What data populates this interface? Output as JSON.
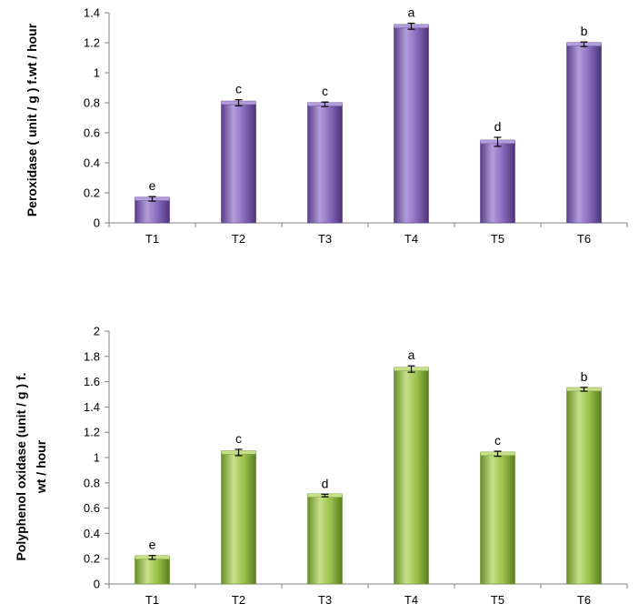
{
  "chart_data": [
    {
      "type": "bar",
      "title": "",
      "ylabel": "Peroxidase ( unit / g ) f.wt / hour",
      "xlabel": "",
      "categories": [
        "T1",
        "T2",
        "T3",
        "T4",
        "T5",
        "T6"
      ],
      "values": [
        0.16,
        0.8,
        0.79,
        1.31,
        0.54,
        1.19
      ],
      "errors": [
        0.015,
        0.02,
        0.015,
        0.02,
        0.03,
        0.015
      ],
      "significance": [
        "e",
        "c",
        "c",
        "a",
        "d",
        "b"
      ],
      "ylim": [
        0,
        1.4
      ],
      "yticks": [
        0,
        0.2,
        0.4,
        0.6,
        0.8,
        1,
        1.2,
        1.4
      ],
      "ytick_labels": [
        "0",
        "0.2",
        "0.4",
        "0.6",
        "0.8",
        "1",
        "1.2",
        "1.4"
      ],
      "bar_color": "#8a6bbf",
      "bar_color_dark": "#5a3f8a",
      "bar_color_light": "#b49ddb"
    },
    {
      "type": "bar",
      "title": "",
      "ylabel_lines": [
        "Polyphenol oxidase (unit / g ) f.",
        "wt / hour"
      ],
      "xlabel": "",
      "categories": [
        "T1",
        "T2",
        "T3",
        "T4",
        "T5",
        "T6"
      ],
      "values": [
        0.21,
        1.04,
        0.7,
        1.7,
        1.03,
        1.54
      ],
      "errors": [
        0.015,
        0.025,
        0.01,
        0.025,
        0.02,
        0.015
      ],
      "significance": [
        "e",
        "c",
        "d",
        "a",
        "c",
        "b"
      ],
      "ylim": [
        0,
        2
      ],
      "yticks": [
        0,
        0.2,
        0.4,
        0.6,
        0.8,
        1,
        1.2,
        1.4,
        1.6,
        1.8,
        2
      ],
      "ytick_labels": [
        "0",
        "0.2",
        "0.4",
        "0.6",
        "0.8",
        "1",
        "1.2",
        "1.4",
        "1.6",
        "1.8",
        "2"
      ],
      "bar_color": "#9cc24a",
      "bar_color_dark": "#6a8e2a",
      "bar_color_light": "#c6e08a"
    }
  ]
}
